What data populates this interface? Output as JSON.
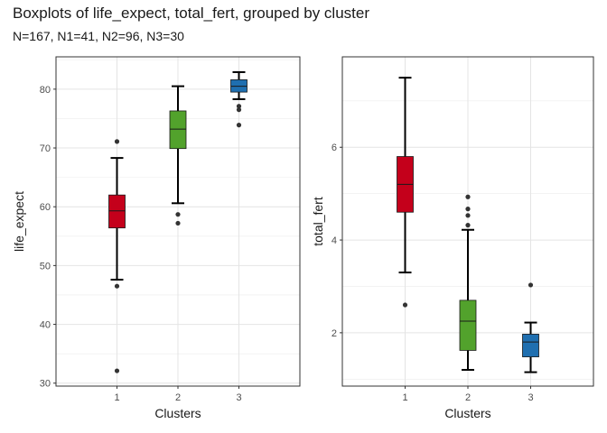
{
  "title": "Boxplots of life_expect, total_fert, grouped by cluster",
  "subtitle": "N=167, N1=41, N2=96, N3=30",
  "chart_data": [
    {
      "type": "boxplot",
      "xlabel": "Clusters",
      "ylabel": "life_expect",
      "categories": [
        "1",
        "2",
        "3"
      ],
      "ylim": [
        29.5,
        85.5
      ],
      "yticks": [
        30,
        40,
        50,
        60,
        70,
        80
      ],
      "grid": true,
      "boxes": [
        {
          "category": "1",
          "color": "#C4001B",
          "min": 47.6,
          "q1": 56.4,
          "median": 59.3,
          "q3": 62.0,
          "max": 68.3,
          "outliers": [
            71.1,
            46.5,
            32.1
          ]
        },
        {
          "category": "2",
          "color": "#52A22C",
          "min": 60.6,
          "q1": 69.9,
          "median": 73.2,
          "q3": 76.3,
          "max": 80.5,
          "outliers": [
            58.7,
            57.2
          ]
        },
        {
          "category": "3",
          "color": "#1F6FB0",
          "min": 78.3,
          "q1": 79.5,
          "median": 80.5,
          "q3": 81.6,
          "max": 82.9,
          "outliers": [
            77.1,
            76.5,
            73.9
          ]
        }
      ]
    },
    {
      "type": "boxplot",
      "xlabel": "Clusters",
      "ylabel": "total_fert",
      "categories": [
        "1",
        "2",
        "3"
      ],
      "ylim": [
        0.85,
        7.95
      ],
      "yticks": [
        2,
        4,
        6
      ],
      "grid": true,
      "boxes": [
        {
          "category": "1",
          "color": "#C4001B",
          "min": 3.3,
          "q1": 4.6,
          "median": 5.2,
          "q3": 5.8,
          "max": 7.5,
          "outliers": [
            2.6
          ]
        },
        {
          "category": "2",
          "color": "#52A22C",
          "min": 1.2,
          "q1": 1.62,
          "median": 2.25,
          "q3": 2.7,
          "max": 4.22,
          "outliers": [
            4.93,
            4.67,
            4.53,
            4.32
          ]
        },
        {
          "category": "3",
          "color": "#1F6FB0",
          "min": 1.15,
          "q1": 1.48,
          "median": 1.8,
          "q3": 1.97,
          "max": 2.22,
          "outliers": [
            3.03
          ]
        }
      ]
    }
  ]
}
